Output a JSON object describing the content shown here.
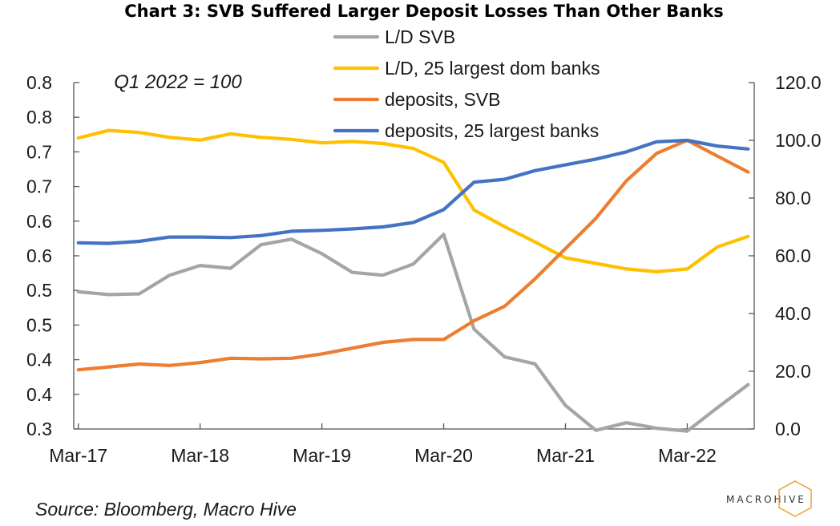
{
  "chart_data": {
    "type": "line",
    "title": "Chart 3: SVB Suffered Larger Deposit Losses Than Other Banks",
    "annotation": "Q1 2022 = 100",
    "source": "Source: Bloomberg, Macro Hive",
    "logo": "MACROHIVE",
    "x_tick_labels": [
      "Mar-17",
      "Mar-18",
      "Mar-19",
      "Mar-20",
      "Mar-21",
      "Mar-22"
    ],
    "x": [
      "2017Q1",
      "2017Q2",
      "2017Q3",
      "2017Q4",
      "2018Q1",
      "2018Q2",
      "2018Q3",
      "2018Q4",
      "2019Q1",
      "2019Q2",
      "2019Q3",
      "2019Q4",
      "2020Q1",
      "2020Q2",
      "2020Q3",
      "2020Q4",
      "2021Q1",
      "2021Q2",
      "2021Q3",
      "2021Q4",
      "2022Q1",
      "2022Q2",
      "2022Q3"
    ],
    "y_left": {
      "lim": [
        0.3,
        0.8
      ],
      "tick_values": [
        0.3,
        0.35,
        0.4,
        0.45,
        0.5,
        0.55,
        0.6,
        0.65,
        0.7,
        0.75,
        0.8
      ],
      "tick_labels": [
        "0.3",
        "0.4",
        "0.4",
        "0.5",
        "0.5",
        "0.6",
        "0.6",
        "0.7",
        "0.7",
        "0.8",
        "0.8"
      ]
    },
    "y_right": {
      "lim": [
        0,
        120
      ],
      "tick_values": [
        0,
        20,
        40,
        60,
        80,
        100,
        120
      ],
      "tick_labels": [
        "0.0",
        "20.0",
        "40.0",
        "60.0",
        "80.0",
        "100.0",
        "120.0"
      ]
    },
    "legend_position": "top-center",
    "series": [
      {
        "name": "L/D SVB",
        "axis": "left",
        "color": "#a5a5a5",
        "values": [
          0.498,
          0.494,
          0.495,
          0.522,
          0.536,
          0.532,
          0.566,
          0.574,
          0.553,
          0.526,
          0.522,
          0.538,
          0.581,
          0.444,
          0.404,
          0.394,
          0.334,
          0.298,
          0.309,
          0.301,
          0.297,
          0.331,
          0.364
        ]
      },
      {
        "name": "L/D, 25 largest dom banks",
        "axis": "left",
        "color": "#ffc000",
        "values": [
          0.72,
          0.731,
          0.728,
          0.721,
          0.717,
          0.726,
          0.721,
          0.718,
          0.713,
          0.715,
          0.712,
          0.705,
          0.685,
          0.616,
          0.592,
          0.57,
          0.547,
          0.539,
          0.531,
          0.527,
          0.531,
          0.563,
          0.578
        ]
      },
      {
        "name": "deposits, SVB",
        "axis": "right",
        "color": "#ed7d31",
        "values": [
          20.5,
          21.5,
          22.5,
          22.0,
          23.0,
          24.5,
          24.3,
          24.5,
          26.0,
          28.0,
          30.0,
          31.0,
          31.0,
          37.5,
          42.5,
          52.0,
          62.5,
          73.0,
          86.0,
          95.5,
          100.0,
          94.5,
          89.0
        ]
      },
      {
        "name": "deposits, 25 largest banks",
        "axis": "right",
        "color": "#4472c4",
        "values": [
          64.5,
          64.3,
          65.0,
          66.5,
          66.5,
          66.3,
          67.0,
          68.5,
          68.8,
          69.3,
          70.0,
          71.5,
          76.0,
          85.5,
          86.5,
          89.5,
          91.5,
          93.5,
          96.0,
          99.5,
          100.0,
          98.0,
          97.0
        ]
      }
    ]
  }
}
